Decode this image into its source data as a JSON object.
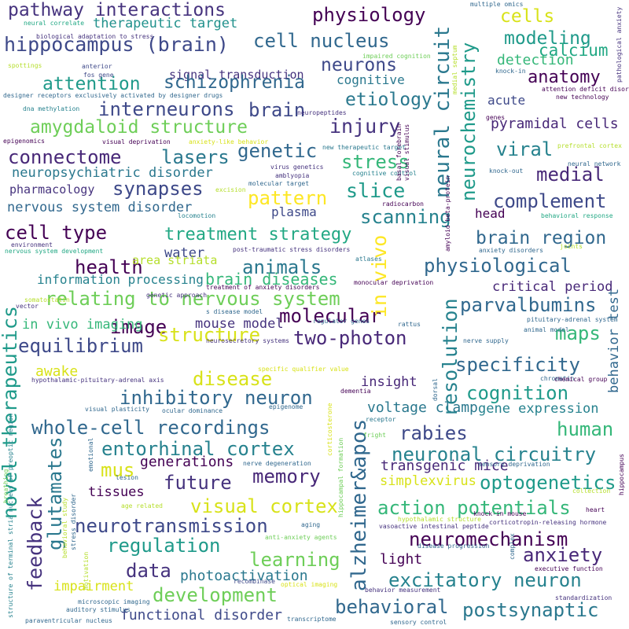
{
  "words": {
    "pathway_interactions": "pathway interactions",
    "physiology": "physiology",
    "hippocampus_brain": "hippocampus (brain)",
    "therapeutic_target": "therapeutic target",
    "cell_nucleus": "cell nucleus",
    "cells": "cells",
    "modeling": "modeling",
    "detection": "detection",
    "calcium": "calcium",
    "anatomy": "anatomy",
    "neurons": "neurons",
    "signal_transduction": "signal transduction",
    "cognitive": "cognitive",
    "attention": "attention",
    "schizophrenia": "schizophrenia",
    "etiology": "etiology",
    "acute": "acute",
    "interneurons": "interneurons",
    "brain": "brain",
    "pyramidal_cells": "pyramidal cells",
    "amygdaloid_structure": "amygdaloid structure",
    "injury": "injury",
    "viral": "viral",
    "connectome": "connectome",
    "lasers": "lasers",
    "genetic": "genetic",
    "stress": "stress",
    "medial": "medial",
    "neuropsychiatric_disorder": "neuropsychiatric disorder",
    "synapses": "synapses",
    "slice": "slice",
    "pharmacology": "pharmacology",
    "pattern": "pattern",
    "nervous_system_disorder": "nervous system disorder",
    "complement": "complement",
    "head": "head",
    "scanning": "scanning",
    "plasma": "plasma",
    "cell_type": "cell type",
    "treatment_strategy": "treatment strategy",
    "brain_region": "brain region",
    "water": "water",
    "health": "health",
    "animals": "animals",
    "area_striata": "area striata",
    "physiological": "physiological",
    "information_processing": "information processing",
    "brain_diseases": "brain diseases",
    "critical_period": "critical period",
    "relating_to_nervous_system": "relating to nervous system",
    "parvalbumins": "parvalbumins",
    "image": "image",
    "mouse_model": "mouse model",
    "maps": "maps",
    "molecular": "molecular",
    "in_vivo_imaging": "in vivo imaging",
    "structure": "structure",
    "two_photon": "two-photon",
    "specificity": "specificity",
    "equilibrium": "equilibrium",
    "disease": "disease",
    "awake": "awake",
    "insight": "insight",
    "cognition": "cognition",
    "inhibitory_neuron": "inhibitory neuron",
    "voltage_clamp": "voltage clamp",
    "gene_expression": "gene expression",
    "whole_cell_recordings": "whole-cell recordings",
    "rabies": "rabies",
    "human": "human",
    "entorhinal_cortex": "entorhinal cortex",
    "neuronal_circuitry": "neuronal circuitry",
    "mus": "mus",
    "generations": "generations",
    "memory": "memory",
    "transgenic_mice": "transgenic mice",
    "future": "future",
    "optogenetics": "optogenetics",
    "tissues": "tissues",
    "simplexvirus": "simplexvirus",
    "visual_cortex": "visual cortex",
    "action_potentials": "action potentials",
    "neurotransmission": "neurotransmission",
    "regulation": "regulation",
    "neuromechanism": "neuromechanism",
    "learning": "learning",
    "anxiety": "anxiety",
    "data": "data",
    "photoactivation": "photoactivation",
    "light": "light",
    "excitatory_neuron": "excitatory neuron",
    "impairment": "impairment",
    "development": "development",
    "behavioral": "behavioral",
    "postsynaptic": "postsynaptic",
    "functional_disorder": "functional disorder",
    "neural_circuit": "neural circuit",
    "neurochemistry": "neurochemistry",
    "in_vivo": "in vivo",
    "resolution": "resolution",
    "alzheimer": "alzheimer&apos",
    "novel_therapeutics": "novel therapeutics",
    "glutamates": "glutamates",
    "feedback": "feedback",
    "behavior_test": "behavior test",
    "neural_correlate": "neural correlate",
    "biological_adaptation_to_stress": "biological adaptation to stress",
    "spottings": "spottings",
    "anterior": "anterior",
    "fos_gene": "fos gene",
    "dreadds": "designer receptors exclusively activated by designer drugs",
    "dna_methylation": "dna methylation",
    "impaired_cognition": "impaired cognition",
    "neuropeptides": "neuropeptides",
    "epigenomics": "epigenomics",
    "visual_deprivation": "visual deprivation",
    "anxiety_like_behavior": "anxiety-like behavior",
    "new_therapeutic_target": "new therapeutic target",
    "virus_genetics": "virus genetics",
    "amblyopia": "amblyopia",
    "cognitive_control": "cognitive control",
    "molecular_target": "molecular target",
    "excision": "excision",
    "radiocarbon": "radiocarbon",
    "locomotion": "locomotion",
    "environment": "environment",
    "nervous_system_development": "nervous system development",
    "post_traumatic_stress_disorders": "post-traumatic stress disorders",
    "atlases": "atlases",
    "monocular_deprivation": "monocular deprivation",
    "treatment_of_anxiety_disorders": "treatment of anxiety disorders",
    "vector": "vector",
    "somatostatin": "somatostatin",
    "genetic_approach": "genetic approach",
    "s_disease_model": "s disease model",
    "regulator_genes": "regulator genes",
    "rattus": "rattus",
    "neurosecretory_systems": "neurosecretory systems",
    "specific_qualifier_value": "specific qualifier value",
    "hpa_axis": "hypothalamic-pituitary-adrenal axis",
    "dementia": "dementia",
    "dorsal": "dorsal",
    "visual_plasticity": "visual plasticity",
    "epigenome": "epigenome",
    "ocular_dominance": "ocular dominance",
    "emotional": "emotional",
    "receptor": "receptor",
    "fright": "fright",
    "nerve_degeneration": "nerve degeneration",
    "lesion": "lesion",
    "age_related": "age related",
    "aging": "aging",
    "anti_anxiety_agents": "anti-anxiety agents",
    "recombinase": "recombinase",
    "optical_imaging": "optical imaging",
    "microscopic_imaging": "microscopic imaging",
    "auditory_stimulus": "auditory stimulus",
    "paraventricular_nucleus": "paraventricular nucleus",
    "transcriptome": "transcriptome",
    "sensory_deprivation": "sensory deprivation",
    "hypothalamic_structure": "hypothalamic structure",
    "vasoactive_intestinal_peptide": "vasoactive intestinal peptide",
    "corticotropin_releasing_hormone": "corticotropin-releasing hormone",
    "knock_in_mouse": "knock-in mouse",
    "disease_progression": "disease progression",
    "executive_function": "executive function",
    "behavior_measurement": "behavior measurement",
    "standardization": "standardization",
    "sensory_control": "sensory control",
    "multiple_omics": "multiple omics",
    "knock_in": "knock-in",
    "attention_deficit_disorder": "attention deficit disorder",
    "new_technology": "new technology",
    "genes": "genes",
    "prefrontal_cortex": "prefrontal cortex",
    "knock_out": "knock-out",
    "neural_network": "neural network",
    "behavioral_response": "behavioral response",
    "anxiety_disorders": "anxiety disorders",
    "joints": "joints",
    "pituitary_adrenal_system": "pituitary-adrenal system",
    "animal_model": "animal model",
    "nerve_supply": "nerve supply",
    "chromatin": "chromatin",
    "chemical_group": "chemical group",
    "collection": "collection",
    "heart": "heart",
    "medial_septum": "medial septum",
    "pathological_anxiety": "pathological anxiety",
    "hippocampus": "hippocampus",
    "complex": "complex",
    "corticosterone": "corticosterone",
    "hippocampal_formation": "hippocampal formation",
    "bed_nucleus": "structure of terminal stria nucleus of preoptic region",
    "breathing": "breathing",
    "behavioral_study": "behavioral study",
    "stress_disorder": "stress disorder",
    "motivation": "motivation",
    "basal_forebrain": "basal forebrain",
    "visual_stimulus": "visual stimulus",
    "amyloid_beta_protein": "amyloid beta-protein"
  }
}
